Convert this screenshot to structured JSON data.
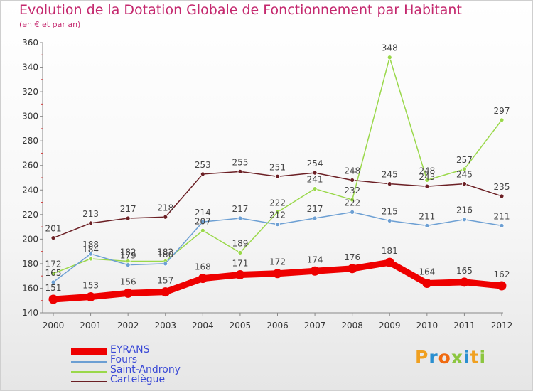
{
  "title": "Evolution de la Dotation Globale de Fonctionnement par Habitant",
  "subtitle": "(en € et par an)",
  "brand": "Proxiti",
  "chart_data": {
    "type": "line",
    "title": "Evolution de la Dotation Globale de Fonctionnement par Habitant",
    "subtitle": "(en € et par an)",
    "xlabel": "",
    "ylabel": "",
    "x": [
      "2000",
      "2001",
      "2002",
      "2003",
      "2004",
      "2005",
      "2006",
      "2007",
      "2008",
      "2009",
      "2010",
      "2011",
      "2012"
    ],
    "ylim": [
      140,
      360
    ],
    "yticks": [
      140,
      160,
      180,
      200,
      220,
      240,
      260,
      280,
      300,
      320,
      340,
      360
    ],
    "grid": false,
    "legend_position": "bottom-left",
    "series": [
      {
        "name": "EYRANS",
        "color": "#ee0000",
        "values": [
          151,
          153,
          156,
          157,
          168,
          171,
          172,
          174,
          176,
          181,
          164,
          165,
          162
        ]
      },
      {
        "name": "Fours",
        "color": "#6c9fd3",
        "values": [
          165,
          188,
          179,
          180,
          214,
          217,
          212,
          217,
          222,
          215,
          211,
          216,
          211
        ]
      },
      {
        "name": "Saint-Androny",
        "color": "#9ad84a",
        "values": [
          172,
          184,
          182,
          182,
          207,
          189,
          222,
          241,
          232,
          348,
          248,
          257,
          297
        ]
      },
      {
        "name": "Cartelègue",
        "color": "#6b1f24",
        "values": [
          201,
          213,
          217,
          218,
          253,
          255,
          251,
          254,
          248,
          245,
          243,
          245,
          235
        ]
      }
    ]
  }
}
